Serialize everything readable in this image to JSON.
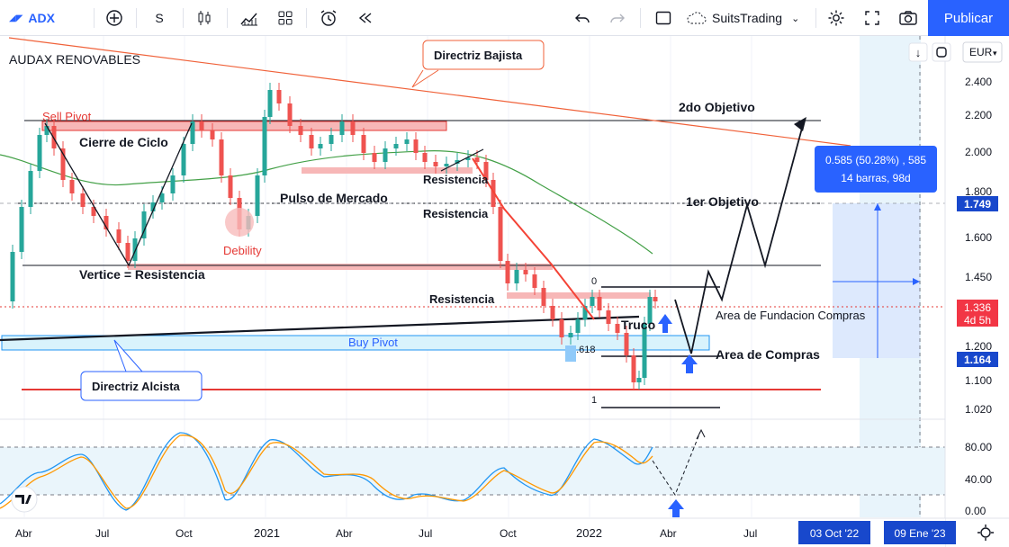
{
  "toolbar": {
    "symbol": "ADX",
    "interval": "S",
    "layout_name": "SuitsTrading",
    "publish_label": "Publicar"
  },
  "chart": {
    "instrument": "AUDAX RENOVABLES",
    "currency": "EUR",
    "price_axis": [
      "2.400",
      "2.200",
      "2.000",
      "1.800",
      "1.600",
      "1.450",
      "1.200",
      "1.100",
      "1.020"
    ],
    "oscillator_axis": [
      "80.00",
      "40.00",
      "0.00"
    ],
    "time_axis": [
      "Abr",
      "Jul",
      "Oct",
      "2021",
      "Abr",
      "Jul",
      "Oct",
      "2022",
      "Abr",
      "Jul"
    ],
    "time_badges": [
      "03 Oct '22",
      "09 Ene '23"
    ],
    "price_badges": {
      "target": "1.749",
      "current": "1.336",
      "countdown": "4d 5h",
      "support": "1.164"
    },
    "measure_tooltip": {
      "line1": "0.585 (50.28%) , 585",
      "line2": "14 barras, 98d"
    },
    "annotations": {
      "directriz_bajista": "Directriz Bajista",
      "directriz_alcista": "Directriz Alcista",
      "sell_pivot": "Sell Pivot",
      "buy_pivot": "Buy Pivot",
      "cierre_ciclo": "Cierre de Ciclo",
      "pulso": "Pulso de Mercado",
      "resistencia": "Resistencia",
      "debility": "Debility",
      "vertice": "Vertice = Resistencia",
      "objetivo2": "2do Objetivo",
      "objetivo1": "1er Objetivo",
      "area_fundacion": "Area de Fundacion Compras",
      "area_compras": "Area de Compras",
      "truco": "Truco",
      "fib_0": "0",
      "fib_0618": "0.618",
      "fib_1": "1"
    }
  }
}
